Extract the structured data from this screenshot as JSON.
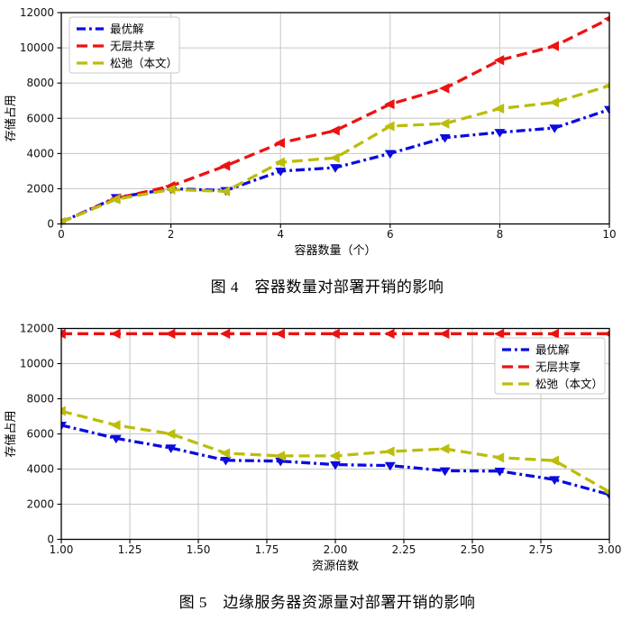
{
  "page": {
    "background": "#ffffff"
  },
  "figures": [
    {
      "caption": "图 4　容器数量对部署开销的影响"
    },
    {
      "caption": "图 5　边缘服务器资源量对部署开销的影响"
    }
  ],
  "chart_data": [
    {
      "type": "line",
      "title": "",
      "xlabel": "容器数量（个）",
      "ylabel": "存储占用",
      "xlim": [
        0,
        10
      ],
      "ylim": [
        0,
        12000
      ],
      "xticks": [
        0,
        2,
        4,
        6,
        8,
        10
      ],
      "xtick_labels": [
        "0",
        "2",
        "4",
        "6",
        "8",
        "10"
      ],
      "yticks": [
        0,
        2000,
        4000,
        6000,
        8000,
        10000,
        12000
      ],
      "ytick_labels": [
        "0",
        "2000",
        "4000",
        "6000",
        "8000",
        "10000",
        "12000"
      ],
      "grid": true,
      "legend_position": "upper-left",
      "x": [
        0,
        1,
        2,
        3,
        4,
        5,
        6,
        7,
        8,
        9,
        10
      ],
      "series": [
        {
          "name": "最优解",
          "color": "#0b0be0",
          "dash": "dashdot",
          "marker": "triangle-down",
          "values": [
            100,
            1500,
            2000,
            1900,
            3000,
            3200,
            4000,
            4900,
            5200,
            5450,
            6500
          ]
        },
        {
          "name": "无层共享",
          "color": "#ee1111",
          "dash": "dashed",
          "marker": "triangle-left",
          "values": [
            100,
            1450,
            2150,
            3300,
            4600,
            5300,
            6800,
            7700,
            9300,
            10100,
            11650
          ]
        },
        {
          "name": "松弛（本文）",
          "color": "#bcbd0b",
          "dash": "dashed",
          "marker": "triangle-left",
          "values": [
            100,
            1400,
            1950,
            1850,
            3500,
            3750,
            5550,
            5700,
            6550,
            6900,
            7850
          ]
        }
      ]
    },
    {
      "type": "line",
      "title": "",
      "xlabel": "资源倍数",
      "ylabel": "存储占用",
      "xlim": [
        1.0,
        3.0
      ],
      "ylim": [
        0,
        12000
      ],
      "xticks": [
        1.0,
        1.25,
        1.5,
        1.75,
        2.0,
        2.25,
        2.5,
        2.75,
        3.0
      ],
      "xtick_labels": [
        "1.00",
        "1.25",
        "1.50",
        "1.75",
        "2.00",
        "2.25",
        "2.50",
        "2.75",
        "3.00"
      ],
      "yticks": [
        0,
        2000,
        4000,
        6000,
        8000,
        10000,
        12000
      ],
      "ytick_labels": [
        "0",
        "2000",
        "4000",
        "6000",
        "8000",
        "10000",
        "12000"
      ],
      "grid": true,
      "legend_position": "upper-right",
      "x": [
        1.0,
        1.2,
        1.4,
        1.6,
        1.8,
        2.0,
        2.2,
        2.4,
        2.6,
        2.8,
        3.0
      ],
      "series": [
        {
          "name": "最优解",
          "color": "#0b0be0",
          "dash": "dashdot",
          "marker": "triangle-down",
          "values": [
            6500,
            5750,
            5200,
            4500,
            4450,
            4250,
            4200,
            3900,
            3880,
            3400,
            2550
          ]
        },
        {
          "name": "无层共享",
          "color": "#ee1111",
          "dash": "dashed",
          "marker": "triangle-left",
          "values": [
            11700,
            11700,
            11700,
            11700,
            11700,
            11700,
            11700,
            11700,
            11700,
            11700,
            11700
          ]
        },
        {
          "name": "松弛（本文）",
          "color": "#bcbd0b",
          "dash": "dashed",
          "marker": "triangle-left",
          "values": [
            7300,
            6500,
            6000,
            4900,
            4750,
            4750,
            5000,
            5150,
            4650,
            4480,
            2700
          ]
        }
      ]
    }
  ]
}
